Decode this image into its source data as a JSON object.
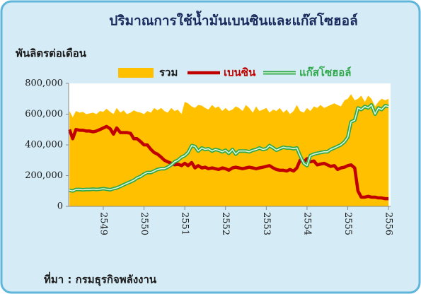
{
  "chart_data": {
    "type": "line",
    "title": "ปริมาณการใช้น้ำมันเบนซินและแก๊สโซฮอล์",
    "y_label": "พันลิตรต่อเดือน",
    "source": "ที่มา : กรมธุรกิจพลังงาน",
    "x": [
      2548.17,
      2548.25,
      2548.33,
      2548.42,
      2548.5,
      2548.58,
      2548.67,
      2548.75,
      2548.83,
      2548.92,
      2549,
      2549.08,
      2549.17,
      2549.25,
      2549.33,
      2549.42,
      2549.5,
      2549.58,
      2549.67,
      2549.75,
      2549.83,
      2549.92,
      2550,
      2550.08,
      2550.17,
      2550.25,
      2550.33,
      2550.42,
      2550.5,
      2550.58,
      2550.67,
      2550.75,
      2550.83,
      2550.92,
      2551,
      2551.08,
      2551.17,
      2551.25,
      2551.33,
      2551.42,
      2551.5,
      2551.58,
      2551.67,
      2551.75,
      2551.83,
      2551.92,
      2552,
      2552.08,
      2552.17,
      2552.25,
      2552.33,
      2552.42,
      2552.5,
      2552.58,
      2552.67,
      2552.75,
      2552.83,
      2552.92,
      2553,
      2553.08,
      2553.17,
      2553.25,
      2553.33,
      2553.42,
      2553.5,
      2553.58,
      2553.67,
      2553.75,
      2553.83,
      2553.92,
      2554,
      2554.08,
      2554.17,
      2554.25,
      2554.33,
      2554.42,
      2554.5,
      2554.58,
      2554.67,
      2554.75,
      2554.83,
      2554.92,
      2555,
      2555.08,
      2555.17,
      2555.25,
      2555.33,
      2555.42,
      2555.5,
      2555.58,
      2555.67,
      2555.75,
      2555.83,
      2555.92,
      2556
    ],
    "series": [
      {
        "name": "รวม",
        "type": "area",
        "color": "#ffc000",
        "values": [
          620000,
          580000,
          620000,
          610000,
          615000,
          600000,
          605000,
          610000,
          600000,
          620000,
          615000,
          635000,
          615000,
          600000,
          640000,
          610000,
          625000,
          600000,
          610000,
          625000,
          615000,
          610000,
          600000,
          620000,
          610000,
          640000,
          625000,
          640000,
          620000,
          610000,
          640000,
          620000,
          630000,
          600000,
          680000,
          670000,
          650000,
          640000,
          660000,
          655000,
          640000,
          630000,
          660000,
          640000,
          650000,
          620000,
          640000,
          620000,
          630000,
          650000,
          640000,
          620000,
          660000,
          640000,
          610000,
          650000,
          620000,
          630000,
          640000,
          610000,
          630000,
          620000,
          640000,
          610000,
          630000,
          600000,
          620000,
          660000,
          620000,
          610000,
          640000,
          620000,
          650000,
          640000,
          660000,
          640000,
          650000,
          660000,
          670000,
          660000,
          650000,
          690000,
          700000,
          730000,
          690000,
          700000,
          720000,
          680000,
          720000,
          700000,
          650000,
          680000,
          700000,
          690000,
          700000
        ]
      },
      {
        "name": "เบนซิน",
        "color": "#c00000",
        "values": [
          500000,
          440000,
          500000,
          495000,
          495000,
          490000,
          490000,
          485000,
          490000,
          500000,
          510000,
          520000,
          505000,
          470000,
          510000,
          480000,
          480000,
          480000,
          475000,
          440000,
          440000,
          420000,
          400000,
          400000,
          370000,
          350000,
          340000,
          320000,
          300000,
          290000,
          280000,
          270000,
          275000,
          265000,
          280000,
          265000,
          285000,
          250000,
          265000,
          250000,
          255000,
          245000,
          250000,
          245000,
          240000,
          250000,
          245000,
          235000,
          250000,
          255000,
          250000,
          245000,
          250000,
          255000,
          250000,
          245000,
          250000,
          255000,
          260000,
          265000,
          250000,
          240000,
          235000,
          235000,
          230000,
          240000,
          230000,
          250000,
          300000,
          290000,
          310000,
          290000,
          295000,
          270000,
          275000,
          280000,
          270000,
          260000,
          265000,
          240000,
          250000,
          255000,
          265000,
          270000,
          250000,
          100000,
          60000,
          60000,
          65000,
          60000,
          60000,
          55000,
          55000,
          50000,
          50000
        ]
      },
      {
        "name": "แก๊สโซฮอล์",
        "color": "#2ea84a",
        "values": [
          105000,
          100000,
          110000,
          110000,
          108000,
          110000,
          110000,
          112000,
          110000,
          112000,
          115000,
          112000,
          108000,
          115000,
          120000,
          130000,
          140000,
          150000,
          160000,
          170000,
          185000,
          195000,
          210000,
          220000,
          220000,
          230000,
          240000,
          245000,
          245000,
          255000,
          270000,
          290000,
          300000,
          320000,
          330000,
          350000,
          395000,
          390000,
          360000,
          380000,
          370000,
          375000,
          360000,
          370000,
          365000,
          355000,
          365000,
          345000,
          370000,
          340000,
          360000,
          360000,
          360000,
          355000,
          365000,
          370000,
          380000,
          370000,
          375000,
          395000,
          380000,
          365000,
          375000,
          385000,
          380000,
          380000,
          375000,
          380000,
          330000,
          280000,
          265000,
          330000,
          340000,
          345000,
          350000,
          355000,
          355000,
          370000,
          380000,
          390000,
          400000,
          420000,
          450000,
          550000,
          560000,
          640000,
          630000,
          650000,
          640000,
          660000,
          600000,
          640000,
          630000,
          655000,
          650000
        ]
      }
    ],
    "xlim": [
      2548.15,
      2556.05
    ],
    "xticks": [
      2549,
      2550,
      2551,
      2552,
      2553,
      2554,
      2555,
      2556
    ],
    "ylim": [
      0,
      800000
    ],
    "yticks": [
      0,
      {
        "value": 200000,
        "label": "200,000"
      },
      {
        "value": 400000,
        "label": "400,000"
      },
      {
        "value": 600000,
        "label": "600,000"
      },
      {
        "value": 800000,
        "label": "800,000"
      }
    ],
    "legend": "top"
  }
}
